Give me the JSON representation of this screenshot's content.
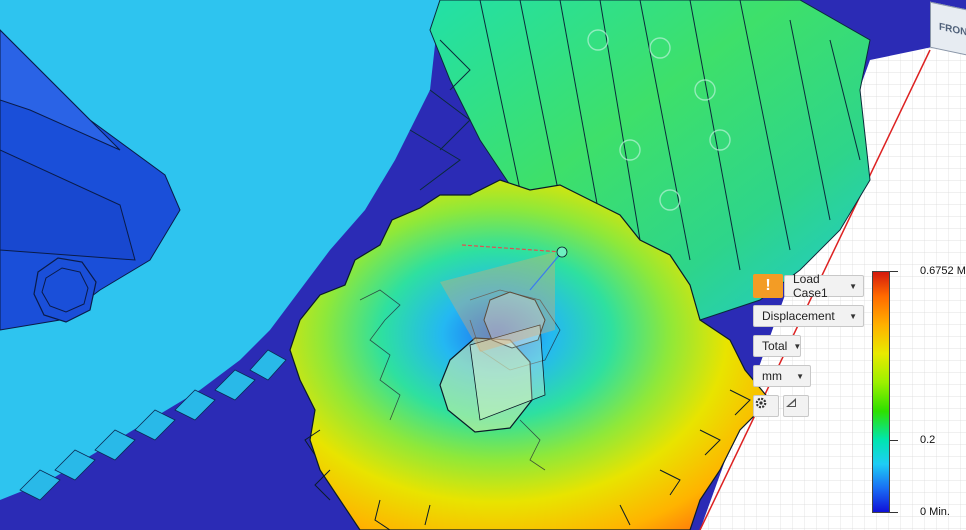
{
  "viewcube": {
    "face_label": "FRONT"
  },
  "results_panel": {
    "warning_symbol": "!",
    "load_case": "Load Case1",
    "result_type": "Displacement",
    "component": "Total",
    "units": "mm"
  },
  "legend": {
    "max_label": "0.6752 M",
    "mid_label": "0.2",
    "min_label": "0 Min.",
    "mid_value": 0.2,
    "max_value": 0.6752,
    "min_value": 0
  },
  "icons": {
    "warning": "warning-icon",
    "settings": "gear-icon",
    "probe": "triangle-probe-icon"
  },
  "colors": {
    "background_blue": "#2f2fb8",
    "scale_max": "#d41a0e",
    "scale_min": "#1010d8",
    "warning": "#f39c25"
  }
}
